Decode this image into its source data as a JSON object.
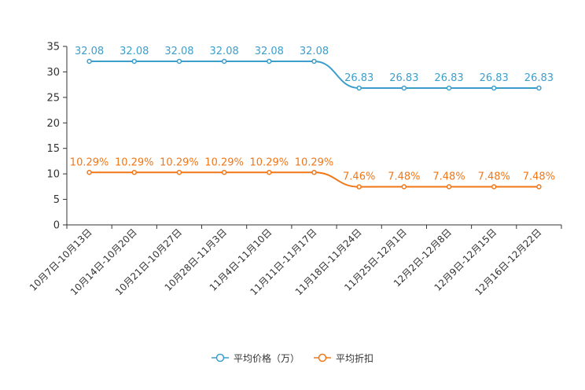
{
  "chart_data": {
    "type": "line",
    "title": "",
    "xlabel": "",
    "ylabel": "",
    "ylim": [
      0,
      35
    ],
    "yticks": [
      0,
      5,
      10,
      15,
      20,
      25,
      30,
      35
    ],
    "grid": false,
    "legend_position": "bottom-center",
    "categories": [
      "10月7日-10月13日",
      "10月14日-10月20日",
      "10月21日-10月27日",
      "10月28日-11月3日",
      "11月4日-11月10日",
      "11月11日-11月17日",
      "11月18日-11月24日",
      "11月25日-12月1日",
      "12月2日-12月8日",
      "12月9日-12月15日",
      "12月16日-12月22日"
    ],
    "series": [
      {
        "name": "平均价格（万）",
        "color": "#3c9fcb",
        "values": [
          32.08,
          32.08,
          32.08,
          32.08,
          32.08,
          32.08,
          26.83,
          26.83,
          26.83,
          26.83,
          26.83
        ],
        "labels": [
          "32.08",
          "32.08",
          "32.08",
          "32.08",
          "32.08",
          "32.08",
          "26.83",
          "26.83",
          "26.83",
          "26.83",
          "26.83"
        ]
      },
      {
        "name": "平均折扣",
        "color": "#f07718",
        "values": [
          10.29,
          10.29,
          10.29,
          10.29,
          10.29,
          10.29,
          7.46,
          7.48,
          7.48,
          7.48,
          7.48
        ],
        "labels": [
          "10.29%",
          "10.29%",
          "10.29%",
          "10.29%",
          "10.29%",
          "10.29%",
          "7.46%",
          "7.48%",
          "7.48%",
          "7.48%",
          "7.48%"
        ]
      }
    ]
  }
}
